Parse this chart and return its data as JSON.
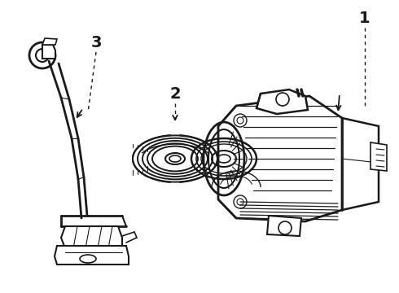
{
  "background_color": "#ffffff",
  "line_color": "#1a1a1a",
  "label_1": "1",
  "label_2": "2",
  "label_3": "3",
  "figsize": [
    4.9,
    3.6
  ],
  "dpi": 100
}
